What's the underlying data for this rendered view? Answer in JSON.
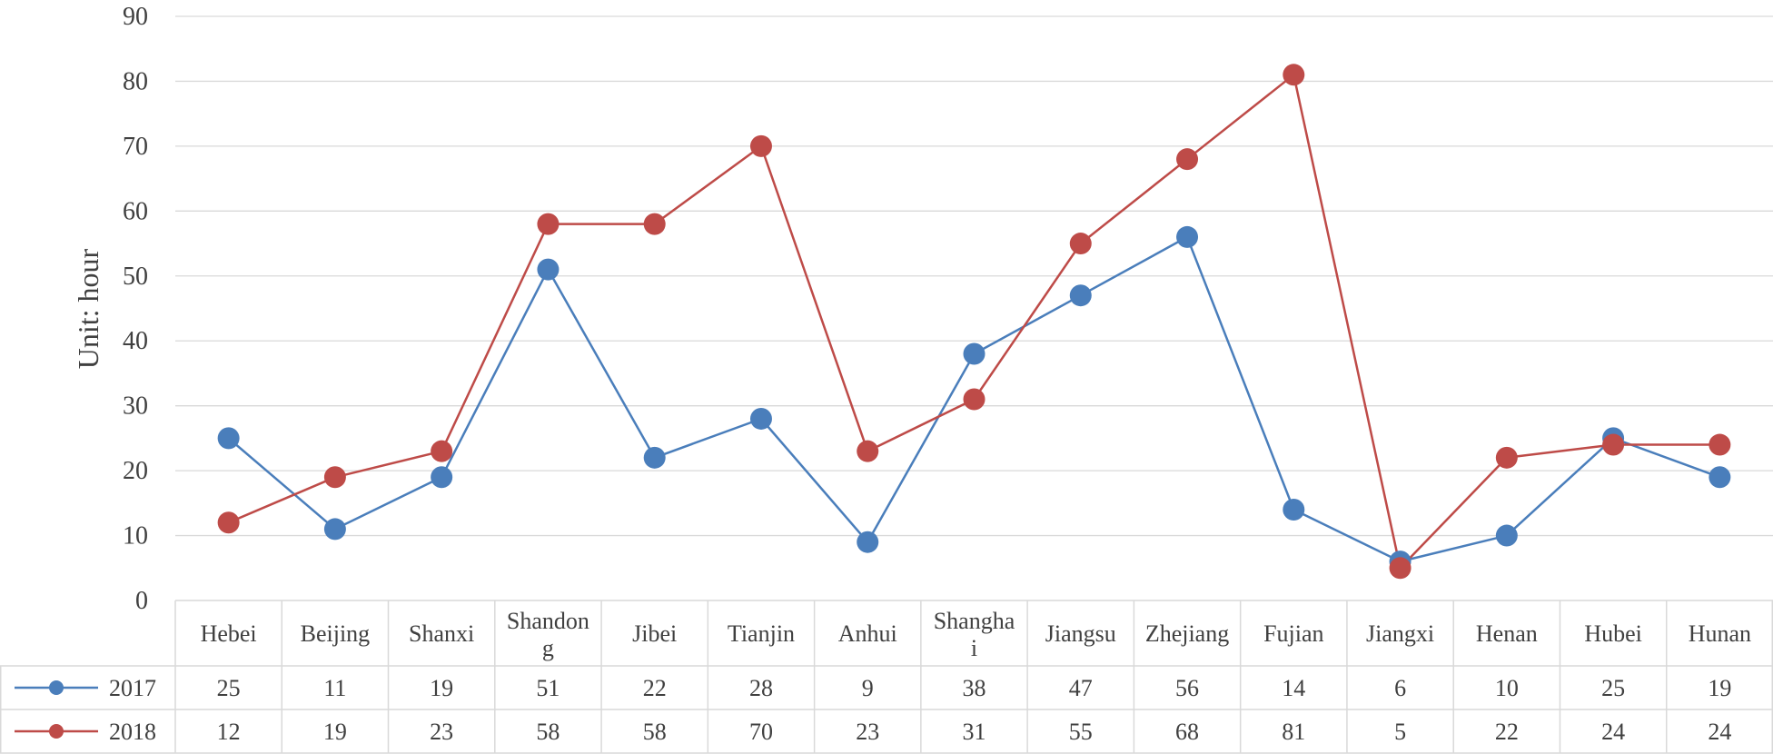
{
  "chart_data": {
    "type": "line",
    "title": "",
    "xlabel": "",
    "ylabel": "Unit: hour",
    "ylim": [
      0,
      90
    ],
    "yticks": [
      0,
      10,
      20,
      30,
      40,
      50,
      60,
      70,
      80,
      90
    ],
    "grid": true,
    "legend": "data-table",
    "categories": [
      "Hebei",
      "Beijing",
      "Shanxi",
      "Shandong",
      "Jibei",
      "Tianjin",
      "Anhui",
      "Shanghai",
      "Jiangsu",
      "Zhejiang",
      "Fujian",
      "Jiangxi",
      "Henan",
      "Hubei",
      "Hunan"
    ],
    "category_lines": [
      [
        "Hebei"
      ],
      [
        "Beijing"
      ],
      [
        "Shanxi"
      ],
      [
        "Shandon",
        "g"
      ],
      [
        "Jibei"
      ],
      [
        "Tianjin"
      ],
      [
        "Anhui"
      ],
      [
        "Shangha",
        "i"
      ],
      [
        "Jiangsu"
      ],
      [
        "Zhejiang"
      ],
      [
        "Fujian"
      ],
      [
        "Jiangxi"
      ],
      [
        "Henan"
      ],
      [
        "Hubei"
      ],
      [
        "Hunan"
      ]
    ],
    "series": [
      {
        "name": "2017",
        "color": "#4a7ebb",
        "values": [
          25,
          11,
          19,
          51,
          22,
          28,
          9,
          38,
          47,
          56,
          14,
          6,
          10,
          25,
          19
        ]
      },
      {
        "name": "2018",
        "color": "#be4b48",
        "values": [
          12,
          19,
          23,
          58,
          58,
          70,
          23,
          31,
          55,
          68,
          81,
          5,
          22,
          24,
          24
        ]
      }
    ]
  }
}
